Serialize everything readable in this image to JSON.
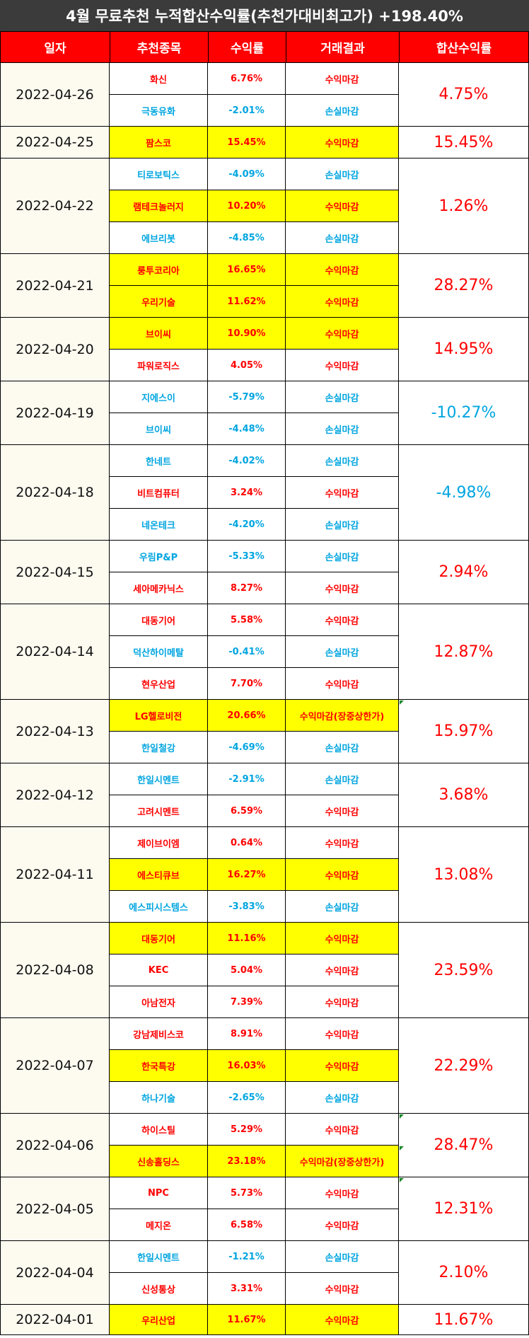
{
  "title": "4월 무료추천 누적합산수익률(추천가대비최고가) +198.40%",
  "headers": [
    "일자",
    "추천종목",
    "수익률",
    "거래결과",
    "합산수익률"
  ],
  "colors": {
    "header_bg": "#ff0000",
    "title_bg": "#3b3b3b",
    "highlight": "#ffff00",
    "profit": "#ff0000",
    "loss": "#00a5e0"
  },
  "groups": [
    {
      "date": "2022-04-26",
      "total": "4.75%",
      "total_color": "red",
      "stocks": [
        {
          "name": "화신",
          "ret": "6.76%",
          "result": "수익마감",
          "hl": false
        },
        {
          "name": "극동유화",
          "ret": "-2.01%",
          "result": "손실마감",
          "hl": false
        }
      ]
    },
    {
      "date": "2022-04-25",
      "total": "15.45%",
      "total_color": "red",
      "stocks": [
        {
          "name": "팜스코",
          "ret": "15.45%",
          "result": "수익마감",
          "hl": true
        }
      ]
    },
    {
      "date": "2022-04-22",
      "total": "1.26%",
      "total_color": "red",
      "stocks": [
        {
          "name": "티로보틱스",
          "ret": "-4.09%",
          "result": "손실마감",
          "hl": false
        },
        {
          "name": "램테크놀러지",
          "ret": "10.20%",
          "result": "수익마감",
          "hl": true
        },
        {
          "name": "에브리봇",
          "ret": "-4.85%",
          "result": "손실마감",
          "hl": false
        }
      ]
    },
    {
      "date": "2022-04-21",
      "total": "28.27%",
      "total_color": "red",
      "stocks": [
        {
          "name": "룽투코리아",
          "ret": "16.65%",
          "result": "수익마감",
          "hl": true
        },
        {
          "name": "우리기술",
          "ret": "11.62%",
          "result": "수익마감",
          "hl": true
        }
      ]
    },
    {
      "date": "2022-04-20",
      "total": "14.95%",
      "total_color": "red",
      "stocks": [
        {
          "name": "브이씨",
          "ret": "10.90%",
          "result": "수익마감",
          "hl": true
        },
        {
          "name": "파워로직스",
          "ret": "4.05%",
          "result": "수익마감",
          "hl": false
        }
      ]
    },
    {
      "date": "2022-04-19",
      "total": "-10.27%",
      "total_color": "blue",
      "stocks": [
        {
          "name": "지에스이",
          "ret": "-5.79%",
          "result": "손실마감",
          "hl": false
        },
        {
          "name": "브이씨",
          "ret": "-4.48%",
          "result": "손실마감",
          "hl": false
        }
      ]
    },
    {
      "date": "2022-04-18",
      "total": "-4.98%",
      "total_color": "blue",
      "stocks": [
        {
          "name": "한네트",
          "ret": "-4.02%",
          "result": "손실마감",
          "hl": false
        },
        {
          "name": "비트컴퓨터",
          "ret": "3.24%",
          "result": "수익마감",
          "hl": false
        },
        {
          "name": "네온테크",
          "ret": "-4.20%",
          "result": "손실마감",
          "hl": false
        }
      ]
    },
    {
      "date": "2022-04-15",
      "total": "2.94%",
      "total_color": "red",
      "stocks": [
        {
          "name": "우림P&P",
          "ret": "-5.33%",
          "result": "손실마감",
          "hl": false
        },
        {
          "name": "세아메카닉스",
          "ret": "8.27%",
          "result": "수익마감",
          "hl": false
        }
      ]
    },
    {
      "date": "2022-04-14",
      "total": "12.87%",
      "total_color": "red",
      "stocks": [
        {
          "name": "대동기어",
          "ret": "5.58%",
          "result": "수익마감",
          "hl": false
        },
        {
          "name": "덕산하이메탈",
          "ret": "-0.41%",
          "result": "손실마감",
          "hl": false
        },
        {
          "name": "현우산업",
          "ret": "7.70%",
          "result": "수익마감",
          "hl": false
        }
      ]
    },
    {
      "date": "2022-04-13",
      "total": "15.97%",
      "total_color": "red",
      "stocks": [
        {
          "name": "LG헬로비전",
          "ret": "20.66%",
          "result": "수익마감(장중상한가)",
          "hl": true
        },
        {
          "name": "한일철강",
          "ret": "-4.69%",
          "result": "손실마감",
          "hl": false
        }
      ]
    },
    {
      "date": "2022-04-12",
      "total": "3.68%",
      "total_color": "red",
      "stocks": [
        {
          "name": "한일시멘트",
          "ret": "-2.91%",
          "result": "손실마감",
          "hl": false
        },
        {
          "name": "고려시멘트",
          "ret": "6.59%",
          "result": "수익마감",
          "hl": false
        }
      ]
    },
    {
      "date": "2022-04-11",
      "total": "13.08%",
      "total_color": "red",
      "stocks": [
        {
          "name": "제이브이엠",
          "ret": "0.64%",
          "result": "수익마감",
          "hl": false
        },
        {
          "name": "에스티큐브",
          "ret": "16.27%",
          "result": "수익마감",
          "hl": true
        },
        {
          "name": "에스피시스템스",
          "ret": "-3.83%",
          "result": "손실마감",
          "hl": false
        }
      ]
    },
    {
      "date": "2022-04-08",
      "total": "23.59%",
      "total_color": "red",
      "stocks": [
        {
          "name": "대동기어",
          "ret": "11.16%",
          "result": "수익마감",
          "hl": true
        },
        {
          "name": "KEC",
          "ret": "5.04%",
          "result": "수익마감",
          "hl": false
        },
        {
          "name": "아남전자",
          "ret": "7.39%",
          "result": "수익마감",
          "hl": false
        }
      ]
    },
    {
      "date": "2022-04-07",
      "total": "22.29%",
      "total_color": "red",
      "stocks": [
        {
          "name": "강남제비스코",
          "ret": "8.91%",
          "result": "수익마감",
          "hl": false
        },
        {
          "name": "한국특강",
          "ret": "16.03%",
          "result": "수익마감",
          "hl": true
        },
        {
          "name": "하나기술",
          "ret": "-2.65%",
          "result": "손실마감",
          "hl": false
        }
      ]
    },
    {
      "date": "2022-04-06",
      "total": "28.47%",
      "total_color": "red",
      "stocks": [
        {
          "name": "하이스틸",
          "ret": "5.29%",
          "result": "수익마감",
          "hl": false
        },
        {
          "name": "신송홀딩스",
          "ret": "23.18%",
          "result": "수익마감(장중상한가)",
          "hl": true
        }
      ]
    },
    {
      "date": "2022-04-05",
      "total": "12.31%",
      "total_color": "red",
      "stocks": [
        {
          "name": "NPC",
          "ret": "5.73%",
          "result": "수익마감",
          "hl": false
        },
        {
          "name": "메지온",
          "ret": "6.58%",
          "result": "수익마감",
          "hl": false
        }
      ]
    },
    {
      "date": "2022-04-04",
      "total": "2.10%",
      "total_color": "red",
      "stocks": [
        {
          "name": "한일시멘트",
          "ret": "-1.21%",
          "result": "손실마감",
          "hl": false
        },
        {
          "name": "신성통상",
          "ret": "3.31%",
          "result": "수익마감",
          "hl": false
        }
      ]
    },
    {
      "date": "2022-04-01",
      "total": "11.67%",
      "total_color": "red",
      "stocks": [
        {
          "name": "우리산업",
          "ret": "11.67%",
          "result": "수익마감",
          "hl": true
        }
      ]
    }
  ]
}
